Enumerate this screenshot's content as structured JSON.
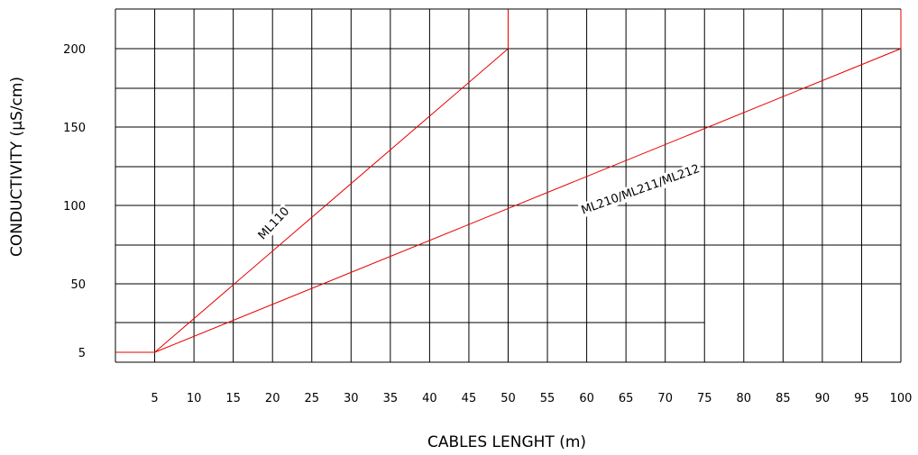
{
  "chart_data": {
    "type": "line",
    "xlabel": "CABLES LENGHT (m)",
    "ylabel": "CONDUCTIVITY (µS/cm)",
    "xlim": [
      0,
      100
    ],
    "x_ticks": [
      5,
      10,
      15,
      20,
      25,
      30,
      35,
      40,
      45,
      50,
      55,
      60,
      65,
      70,
      75,
      80,
      85,
      90,
      95,
      100
    ],
    "x_tick_labels": [
      "5",
      "10",
      "15",
      "20",
      "25",
      "30",
      "35",
      "40",
      "45",
      "50",
      "55",
      "60",
      "65",
      "70",
      "75",
      "80",
      "85",
      "90",
      "95",
      "100"
    ],
    "y_tick_labels": [
      "5",
      "50",
      "100",
      "150",
      "200"
    ],
    "grid": true,
    "series": [
      {
        "name": "ML110",
        "color": "#e60000",
        "points": [
          [
            0,
            5
          ],
          [
            5,
            5
          ],
          [
            50,
            200
          ],
          [
            50,
            225
          ]
        ]
      },
      {
        "name": "ML210/ML211/ML212",
        "color": "#e60000",
        "points": [
          [
            5,
            5
          ],
          [
            100,
            200
          ],
          [
            100,
            225
          ]
        ]
      }
    ]
  }
}
